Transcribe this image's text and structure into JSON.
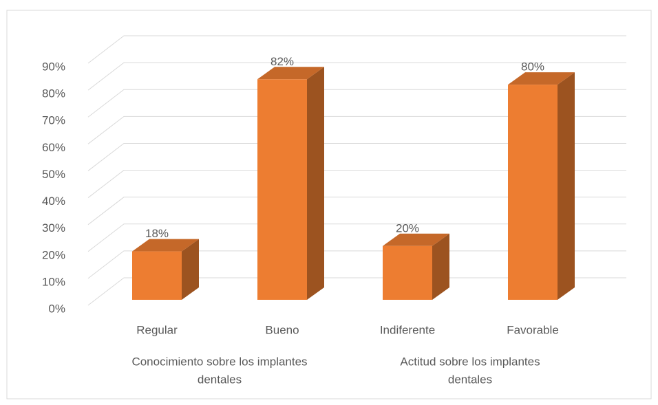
{
  "chart_data": {
    "type": "bar3d",
    "categories": [
      "Regular",
      "Bueno",
      "Indiferente",
      "Favorable"
    ],
    "values": [
      18,
      82,
      20,
      80
    ],
    "value_labels": [
      "18%",
      "82%",
      "20%",
      "80%"
    ],
    "groups": [
      {
        "label": [
          "Conocimiento sobre los implantes",
          "dentales"
        ],
        "span": [
          0,
          1
        ]
      },
      {
        "label": [
          "Actitud sobre los implantes",
          "dentales"
        ],
        "span": [
          2,
          3
        ]
      }
    ],
    "color": "#ed7d31",
    "ylim": [
      0,
      90
    ],
    "yticks": [
      {
        "value": 0,
        "label": "0%"
      },
      {
        "value": 10,
        "label": "10%"
      },
      {
        "value": 20,
        "label": "20%"
      },
      {
        "value": 30,
        "label": "30%"
      },
      {
        "value": 40,
        "label": "40%"
      },
      {
        "value": 50,
        "label": "50%"
      },
      {
        "value": 60,
        "label": "60%"
      },
      {
        "value": 70,
        "label": "70%"
      },
      {
        "value": 80,
        "label": "80%"
      },
      {
        "value": 90,
        "label": "90%"
      }
    ],
    "grid": true
  }
}
